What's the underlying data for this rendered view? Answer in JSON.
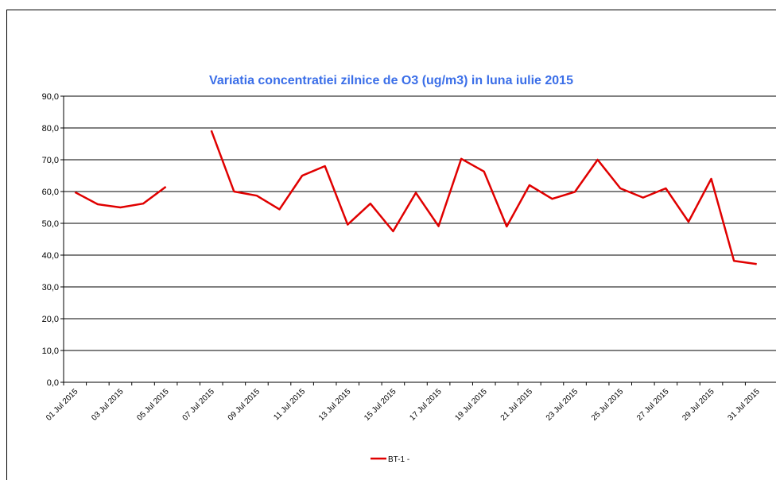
{
  "chart_data": {
    "type": "line",
    "title": "Variatia concentratiei zilnice de  O3 (ug/m3) in luna iulie 2015",
    "categories": [
      "01 Jul 2015",
      null,
      "03 Jul 2015",
      null,
      "05 Jul 2015",
      null,
      "07 Jul 2015",
      null,
      "09 Jul 2015",
      null,
      "11 Jul 2015",
      null,
      "13 Jul 2015",
      null,
      "15 Jul 2015",
      null,
      "17 Jul 2015",
      null,
      "19 Jul 2015",
      null,
      "21 Jul 2015",
      null,
      "23 Jul 2015",
      null,
      "25 Jul 2015",
      null,
      "27 Jul 2015",
      null,
      "29 Jul 2015",
      null,
      "31 Jul 2015"
    ],
    "series": [
      {
        "name": "BT-1 -",
        "color": "#e00000",
        "values": [
          59.8,
          56.0,
          55.0,
          56.2,
          61.5,
          null,
          79.2,
          60.0,
          58.7,
          54.4,
          65.0,
          68.0,
          49.6,
          56.2,
          47.5,
          59.6,
          49.1,
          70.3,
          66.3,
          49.0,
          62.0,
          57.7,
          59.9,
          70.0,
          61.0,
          58.1,
          61.0,
          50.5,
          64.0,
          38.2,
          37.2
        ]
      }
    ],
    "ylim": [
      0,
      90
    ],
    "yticks": [
      {
        "value": 0,
        "label": "0,0"
      },
      {
        "value": 10,
        "label": "10,0"
      },
      {
        "value": 20,
        "label": "20,0"
      },
      {
        "value": 30,
        "label": "30,0"
      },
      {
        "value": 40,
        "label": "40,0"
      },
      {
        "value": 50,
        "label": "50,0"
      },
      {
        "value": 60,
        "label": "60,0"
      },
      {
        "value": 70,
        "label": "70,0"
      },
      {
        "value": 80,
        "label": "80,0"
      },
      {
        "value": 90,
        "label": "90,0"
      }
    ],
    "grid": true,
    "legend": "bottom"
  }
}
